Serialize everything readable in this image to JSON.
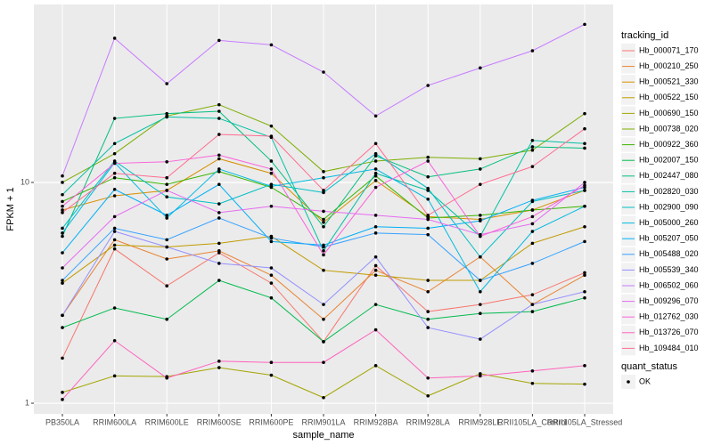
{
  "chart_data": {
    "type": "line",
    "x_label": "sample_name",
    "y_label": "FPKM + 1",
    "categories": [
      "PB350LA",
      "RRIM600LA",
      "RRIM600LE",
      "RRIM600SE",
      "RRIM600PE",
      "RRIM901LA",
      "RRIM928BA",
      "RRIM928LA",
      "RRIM928LE",
      "RRII105LA_Control",
      "RRII105LA_Stressed"
    ],
    "log_scale": true,
    "grid": true,
    "ylim": [
      0.895,
      64
    ],
    "yticks": [
      1,
      10
    ],
    "legend_title": "tracking_id",
    "legend_position": "right",
    "point_legend": {
      "title": "quant_status",
      "labels": [
        "OK"
      ],
      "color": "#000000"
    },
    "series": [
      {
        "name": "Hb_000071_170",
        "color": "#F8766D",
        "values": [
          1.6,
          5,
          3.4,
          4.8,
          3.5,
          1.9,
          4.2,
          2.6,
          2.8,
          3.1,
          3.9
        ]
      },
      {
        "name": "Hb_000210_250",
        "color": "#EA8331",
        "values": [
          2.5,
          5.5,
          4.5,
          4.9,
          3.8,
          2.4,
          4,
          3.2,
          4.6,
          2.8,
          3.8
        ]
      },
      {
        "name": "Hb_000521_330",
        "color": "#D89000",
        "values": [
          7.5,
          8.7,
          9.2,
          12.8,
          11,
          6.6,
          10.2,
          7,
          6.8,
          7.5,
          9.2
        ]
      },
      {
        "name": "Hb_000522_150",
        "color": "#C09B00",
        "values": [
          3.5,
          5.2,
          5.1,
          5.3,
          5.7,
          4,
          3.8,
          3.6,
          3.6,
          5.3,
          6.3
        ]
      },
      {
        "name": "Hb_000690_150",
        "color": "#A3A500",
        "values": [
          1.12,
          1.33,
          1.32,
          1.45,
          1.34,
          1.06,
          1.48,
          1.08,
          1.36,
          1.23,
          1.22
        ]
      },
      {
        "name": "Hb_000738_020",
        "color": "#7CAE00",
        "values": [
          10,
          13.5,
          20,
          22.5,
          18,
          11.2,
          12.5,
          13,
          12.8,
          14,
          20.5
        ]
      },
      {
        "name": "Hb_000922_360",
        "color": "#39B600",
        "values": [
          8.2,
          10.5,
          9.8,
          11.2,
          9.5,
          6.8,
          10.7,
          6.9,
          7.1,
          7.5,
          7.8
        ]
      },
      {
        "name": "Hb_002007_150",
        "color": "#00BB4E",
        "values": [
          2.2,
          2.7,
          2.4,
          3.6,
          3,
          1.9,
          2.8,
          2.4,
          2.55,
          2.6,
          3
        ]
      },
      {
        "name": "Hb_002447_080",
        "color": "#00BF7D",
        "values": [
          5.7,
          19.5,
          20.5,
          21,
          12.5,
          6.3,
          13.2,
          10.6,
          11.5,
          14.5,
          14.3
        ]
      },
      {
        "name": "Hb_002820_030",
        "color": "#00C1A3",
        "values": [
          8.8,
          15,
          19.8,
          19.5,
          16,
          4.9,
          11,
          9.2,
          5.7,
          15.5,
          15
        ]
      },
      {
        "name": "Hb_002900_090",
        "color": "#00BFC4",
        "values": [
          6.2,
          12.5,
          8.6,
          8,
          9.8,
          9,
          13.5,
          9.4,
          4.6,
          8.2,
          9.2
        ]
      },
      {
        "name": "Hb_005000_260",
        "color": "#00BAE0",
        "values": [
          5.9,
          12.3,
          6.9,
          11.5,
          9.6,
          10.5,
          11.5,
          8.4,
          3.2,
          6,
          7.8
        ]
      },
      {
        "name": "Hb_005207_050",
        "color": "#00B0F6",
        "values": [
          4.8,
          9.3,
          7.1,
          9.8,
          5.4,
          5.2,
          6.3,
          6.2,
          6.7,
          8.3,
          9.5
        ]
      },
      {
        "name": "Hb_005488_020",
        "color": "#35A2FF",
        "values": [
          3.6,
          6.2,
          5.5,
          6.9,
          5.6,
          5.1,
          5.9,
          5.8,
          3.6,
          4.3,
          5.4
        ]
      },
      {
        "name": "Hb_005539_340",
        "color": "#9590FF",
        "values": [
          2.5,
          6,
          5.1,
          4.3,
          4.1,
          2.8,
          4.6,
          2.2,
          1.95,
          2.8,
          3.2
        ]
      },
      {
        "name": "Hb_006502_060",
        "color": "#C77CFF",
        "values": [
          10.7,
          45,
          28,
          44,
          42,
          31.6,
          20,
          27.5,
          33,
          39.5,
          52
        ]
      },
      {
        "name": "Hb_009296_070",
        "color": "#E76BF3",
        "values": [
          4.1,
          7,
          9.2,
          7.3,
          7.8,
          7.4,
          7.1,
          6.8,
          5.8,
          6.5,
          10
        ]
      },
      {
        "name": "Hb_012762_030",
        "color": "#FA62DB",
        "values": [
          7.8,
          12.2,
          12.4,
          13.3,
          11.5,
          4.7,
          9.5,
          12.5,
          5.7,
          7,
          9.7
        ]
      },
      {
        "name": "Hb_013726_070",
        "color": "#FF62BC",
        "values": [
          1.04,
          1.92,
          1.3,
          1.55,
          1.53,
          1.53,
          2.15,
          1.3,
          1.33,
          1.4,
          1.48
        ]
      },
      {
        "name": "Hb_109484_010",
        "color": "#FF6C91",
        "values": [
          7.3,
          11,
          10.5,
          16.5,
          16.2,
          9.2,
          15,
          7.1,
          9.8,
          11.8,
          17.5
        ]
      }
    ]
  }
}
